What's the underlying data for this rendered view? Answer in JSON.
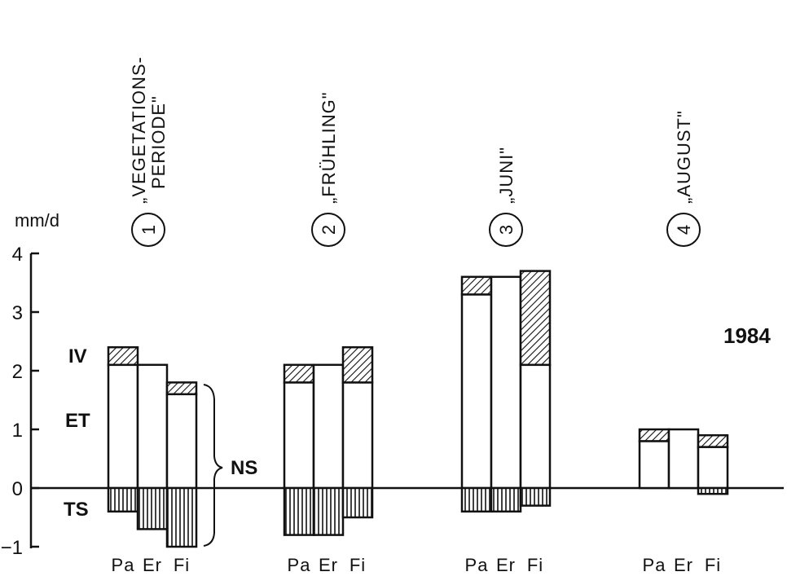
{
  "chart_data": {
    "type": "bar",
    "stacked": true,
    "year": "1984",
    "ylabel": "mm/d",
    "ylim": [
      -1,
      4
    ],
    "yticks": [
      {
        "value": 4,
        "label": "4"
      },
      {
        "value": 3,
        "label": "3"
      },
      {
        "value": 2,
        "label": "2"
      },
      {
        "value": 1,
        "label": "1"
      },
      {
        "value": 0,
        "label": "0"
      },
      {
        "value": -1,
        "label": "−1"
      }
    ],
    "components": [
      {
        "key": "IV",
        "label": "IV",
        "pattern": "diagonal-hatch"
      },
      {
        "key": "ET",
        "label": "ET",
        "pattern": "white"
      },
      {
        "key": "TS",
        "label": "TS",
        "pattern": "vertical-hatch"
      }
    ],
    "brace_label": "NS",
    "groups": [
      {
        "number": "1",
        "label_line1": "„VEGETATIONS-",
        "label_line2": "PERIODE\"",
        "bars": [
          {
            "category": "Pa",
            "ET": 2.1,
            "IV": 0.3,
            "TS": -0.4
          },
          {
            "category": "Er",
            "ET": 2.1,
            "IV": 0.0,
            "TS": -0.7
          },
          {
            "category": "Fi",
            "ET": 1.6,
            "IV": 0.2,
            "TS": -1.0
          }
        ]
      },
      {
        "number": "2",
        "label_line1": "„FRÜHLING\"",
        "label_line2": "",
        "bars": [
          {
            "category": "Pa",
            "ET": 1.8,
            "IV": 0.3,
            "TS": -0.8
          },
          {
            "category": "Er",
            "ET": 2.1,
            "IV": 0.0,
            "TS": -0.8
          },
          {
            "category": "Fi",
            "ET": 1.8,
            "IV": 0.6,
            "TS": -0.5
          }
        ]
      },
      {
        "number": "3",
        "label_line1": "„JUNI\"",
        "label_line2": "",
        "bars": [
          {
            "category": "Pa",
            "ET": 3.3,
            "IV": 0.3,
            "TS": -0.4
          },
          {
            "category": "Er",
            "ET": 3.6,
            "IV": 0.0,
            "TS": -0.4
          },
          {
            "category": "Fi",
            "ET": 2.1,
            "IV": 1.6,
            "TS": -0.3
          }
        ]
      },
      {
        "number": "4",
        "label_line1": "„AUGUST\"",
        "label_line2": "",
        "bars": [
          {
            "category": "Pa",
            "ET": 0.8,
            "IV": 0.2,
            "TS": 0.0
          },
          {
            "category": "Er",
            "ET": 1.0,
            "IV": 0.0,
            "TS": 0.0
          },
          {
            "category": "Fi",
            "ET": 0.7,
            "IV": 0.2,
            "TS": -0.1
          }
        ]
      }
    ]
  }
}
